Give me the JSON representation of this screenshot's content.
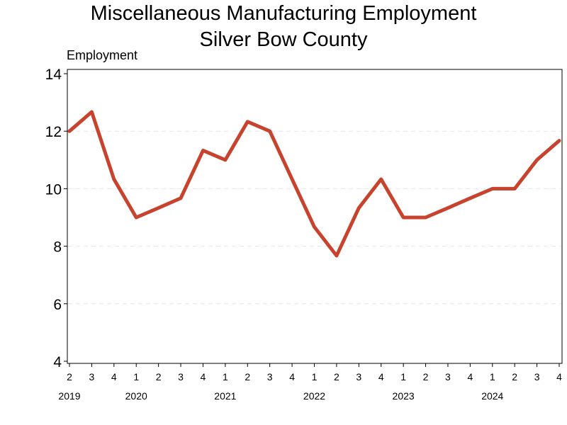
{
  "chart_data": {
    "type": "line",
    "title": "Miscellaneous Manufacturing Employment",
    "subtitle": "Silver Bow County",
    "ylabel": "Employment",
    "xlabel": "",
    "ylim": [
      4,
      14
    ],
    "yticks": [
      4,
      6,
      8,
      10,
      12,
      14
    ],
    "grid": true,
    "categories": [
      "2",
      "3",
      "4",
      "1",
      "2",
      "3",
      "4",
      "1",
      "2",
      "3",
      "4",
      "1",
      "2",
      "3",
      "4",
      "1",
      "2",
      "3",
      "4",
      "1",
      "2",
      "3",
      "4"
    ],
    "year_labels": [
      {
        "label": "2019",
        "index": 0
      },
      {
        "label": "2020",
        "index": 3
      },
      {
        "label": "2021",
        "index": 7
      },
      {
        "label": "2022",
        "index": 11
      },
      {
        "label": "2023",
        "index": 15
      },
      {
        "label": "2024",
        "index": 19
      }
    ],
    "series": [
      {
        "name": "Employment",
        "color": "#c8432e",
        "values": [
          12.0,
          12.67,
          10.33,
          9.0,
          9.33,
          9.67,
          11.33,
          11.0,
          12.33,
          12.0,
          10.33,
          8.67,
          7.67,
          9.33,
          10.33,
          9.0,
          9.0,
          9.33,
          9.67,
          10.0,
          10.0,
          11.0,
          11.67
        ]
      }
    ]
  }
}
